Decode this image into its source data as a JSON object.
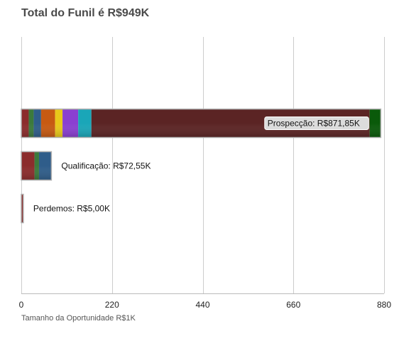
{
  "chart_data": {
    "type": "bar",
    "orientation": "horizontal",
    "stacked": true,
    "title": "Total do Funil é R$949K",
    "xlabel": "Tamanho da Oportunidade R$1K",
    "ylabel": "",
    "xlim": [
      0,
      880
    ],
    "xticks": [
      "0",
      "220",
      "440",
      "660",
      "880"
    ],
    "xtick_values": [
      0,
      220,
      440,
      660,
      880
    ],
    "grid": true,
    "bars": [
      {
        "label": "Prospecção: R$871,85K",
        "segments": [
          {
            "value": 18,
            "color": "#8b2c2c"
          },
          {
            "value": 12,
            "color": "#3c7a3c"
          },
          {
            "value": 18,
            "color": "#2f5d8a"
          },
          {
            "value": 34,
            "color": "#c75a12"
          },
          {
            "value": 18,
            "color": "#e8c81a"
          },
          {
            "value": 38,
            "color": "#8a3fd1"
          },
          {
            "value": 32,
            "color": "#1aa6b8"
          },
          {
            "value": 675,
            "color": "#5b2424"
          },
          {
            "value": 27,
            "color": "#0a5a0a"
          }
        ]
      },
      {
        "label": "Qualificação: R$72,55K",
        "segments": [
          {
            "value": 32,
            "color": "#8b2c2c"
          },
          {
            "value": 11,
            "color": "#3c7a3c"
          },
          {
            "value": 30,
            "color": "#2f5d8a"
          }
        ]
      },
      {
        "label": "Perdemos: R$5,00K",
        "segments": [
          {
            "value": 5,
            "color": "#8b2c2c"
          }
        ]
      }
    ]
  }
}
